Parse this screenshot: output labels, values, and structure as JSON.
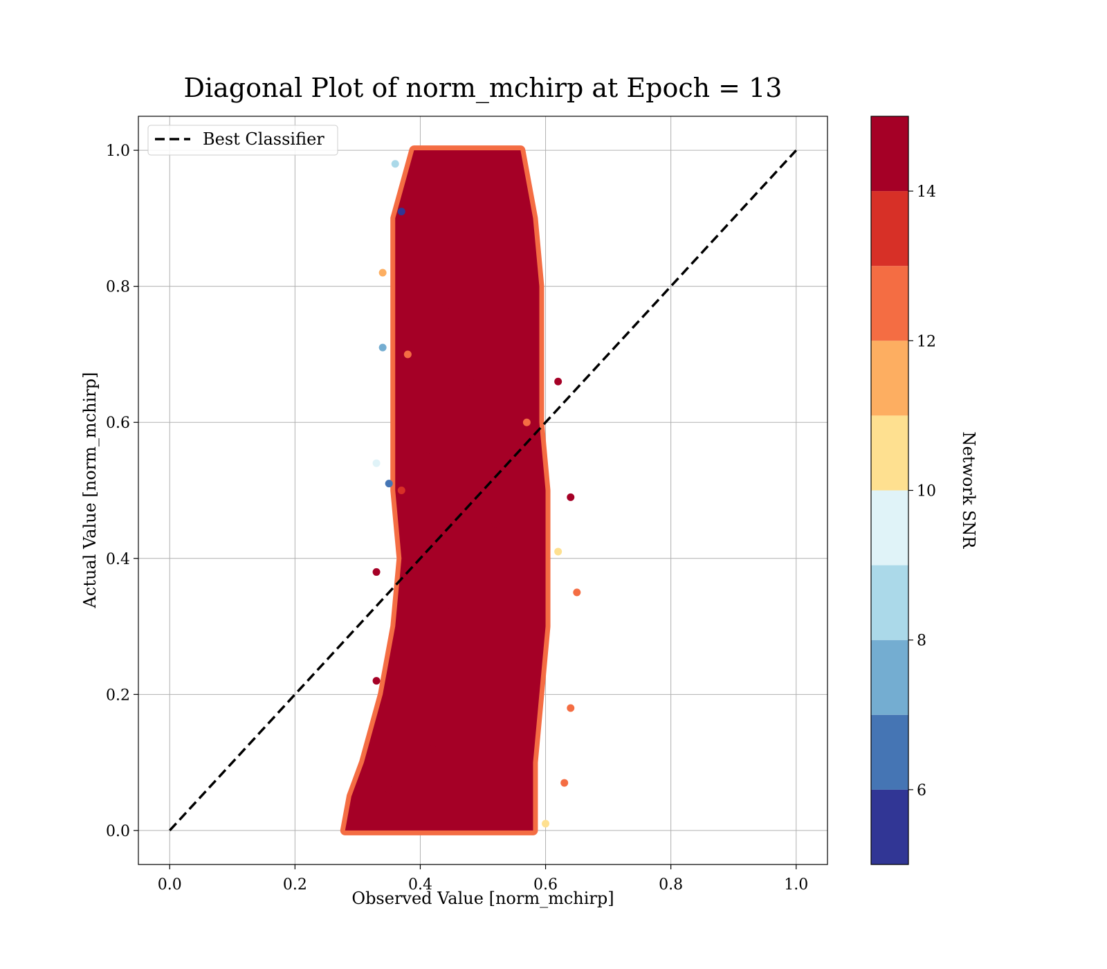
{
  "chart_data": {
    "type": "scatter",
    "title": "Diagonal Plot of norm_mchirp at Epoch = 13",
    "xlabel": "Observed Value [norm_mchirp]",
    "ylabel": "Actual Value [norm_mchirp]",
    "xlim": [
      -0.05,
      1.05
    ],
    "ylim": [
      -0.05,
      1.05
    ],
    "xticks": [
      "0.0",
      "0.2",
      "0.4",
      "0.6",
      "0.8",
      "1.0"
    ],
    "yticks": [
      "0.0",
      "0.2",
      "0.4",
      "0.6",
      "0.8",
      "1.0"
    ],
    "grid": true,
    "legend": {
      "position": "top-left",
      "entries": [
        "Best Classifier"
      ]
    },
    "reference_line": {
      "name": "Best Classifier",
      "x": [
        0,
        1
      ],
      "y": [
        0,
        1
      ],
      "style": "dashed",
      "color": "#000000"
    },
    "colorbar": {
      "label": "Network SNR",
      "range": [
        5,
        15
      ],
      "ticks": [
        "6",
        "8",
        "10",
        "12",
        "14"
      ],
      "bins": [
        {
          "from": 5,
          "to": 6,
          "color": "#313695"
        },
        {
          "from": 6,
          "to": 7,
          "color": "#4575b4"
        },
        {
          "from": 7,
          "to": 8,
          "color": "#74add1"
        },
        {
          "from": 8,
          "to": 9,
          "color": "#abd9e9"
        },
        {
          "from": 9,
          "to": 10,
          "color": "#e0f3f8"
        },
        {
          "from": 10,
          "to": 11,
          "color": "#fee090"
        },
        {
          "from": 11,
          "to": 12,
          "color": "#fdae61"
        },
        {
          "from": 12,
          "to": 13,
          "color": "#f46d43"
        },
        {
          "from": 13,
          "to": 14,
          "color": "#d73027"
        },
        {
          "from": 14,
          "to": 15,
          "color": "#a50026"
        }
      ]
    },
    "point_cloud": {
      "dominant_color": "#a50026",
      "envelope": [
        {
          "y": 0.0,
          "x_min": 0.28,
          "x_max": 0.58
        },
        {
          "y": 0.05,
          "x_min": 0.29,
          "x_max": 0.58
        },
        {
          "y": 0.1,
          "x_min": 0.31,
          "x_max": 0.58
        },
        {
          "y": 0.2,
          "x_min": 0.34,
          "x_max": 0.59
        },
        {
          "y": 0.3,
          "x_min": 0.36,
          "x_max": 0.6
        },
        {
          "y": 0.4,
          "x_min": 0.37,
          "x_max": 0.6
        },
        {
          "y": 0.5,
          "x_min": 0.36,
          "x_max": 0.6
        },
        {
          "y": 0.6,
          "x_min": 0.36,
          "x_max": 0.59
        },
        {
          "y": 0.7,
          "x_min": 0.36,
          "x_max": 0.59
        },
        {
          "y": 0.8,
          "x_min": 0.36,
          "x_max": 0.59
        },
        {
          "y": 0.9,
          "x_min": 0.36,
          "x_max": 0.58
        },
        {
          "y": 1.0,
          "x_min": 0.39,
          "x_max": 0.56
        }
      ],
      "sample_points": [
        {
          "x": 0.35,
          "y": 0.06,
          "snr": 14.5
        },
        {
          "x": 0.42,
          "y": 0.12,
          "snr": 14.6
        },
        {
          "x": 0.5,
          "y": 0.18,
          "snr": 14.3
        },
        {
          "x": 0.55,
          "y": 0.25,
          "snr": 14.8
        },
        {
          "x": 0.45,
          "y": 0.33,
          "snr": 14.2
        },
        {
          "x": 0.52,
          "y": 0.45,
          "snr": 14.7
        },
        {
          "x": 0.41,
          "y": 0.55,
          "snr": 14.4
        },
        {
          "x": 0.48,
          "y": 0.66,
          "snr": 14.9
        },
        {
          "x": 0.44,
          "y": 0.77,
          "snr": 14.1
        },
        {
          "x": 0.5,
          "y": 0.88,
          "snr": 14.6
        },
        {
          "x": 0.46,
          "y": 0.97,
          "snr": 14.3
        },
        {
          "x": 0.57,
          "y": 0.6,
          "snr": 12.5
        },
        {
          "x": 0.38,
          "y": 0.7,
          "snr": 12.4
        },
        {
          "x": 0.37,
          "y": 0.5,
          "snr": 13.2
        },
        {
          "x": 0.34,
          "y": 0.82,
          "snr": 11.5
        },
        {
          "x": 0.36,
          "y": 0.98,
          "snr": 8.5
        },
        {
          "x": 0.34,
          "y": 0.71,
          "snr": 7.5
        },
        {
          "x": 0.35,
          "y": 0.51,
          "snr": 6.5
        },
        {
          "x": 0.37,
          "y": 0.91,
          "snr": 5.5
        },
        {
          "x": 0.33,
          "y": 0.54,
          "snr": 9.5
        },
        {
          "x": 0.6,
          "y": 0.01,
          "snr": 10.5
        },
        {
          "x": 0.62,
          "y": 0.41,
          "snr": 10.4
        },
        {
          "x": 0.62,
          "y": 0.66,
          "snr": 14.6
        },
        {
          "x": 0.64,
          "y": 0.49,
          "snr": 14.7
        },
        {
          "x": 0.65,
          "y": 0.35,
          "snr": 12.6
        },
        {
          "x": 0.64,
          "y": 0.18,
          "snr": 12.4
        },
        {
          "x": 0.63,
          "y": 0.07,
          "snr": 12.5
        },
        {
          "x": 0.33,
          "y": 0.22,
          "snr": 14.8
        },
        {
          "x": 0.33,
          "y": 0.38,
          "snr": 14.6
        }
      ]
    }
  }
}
